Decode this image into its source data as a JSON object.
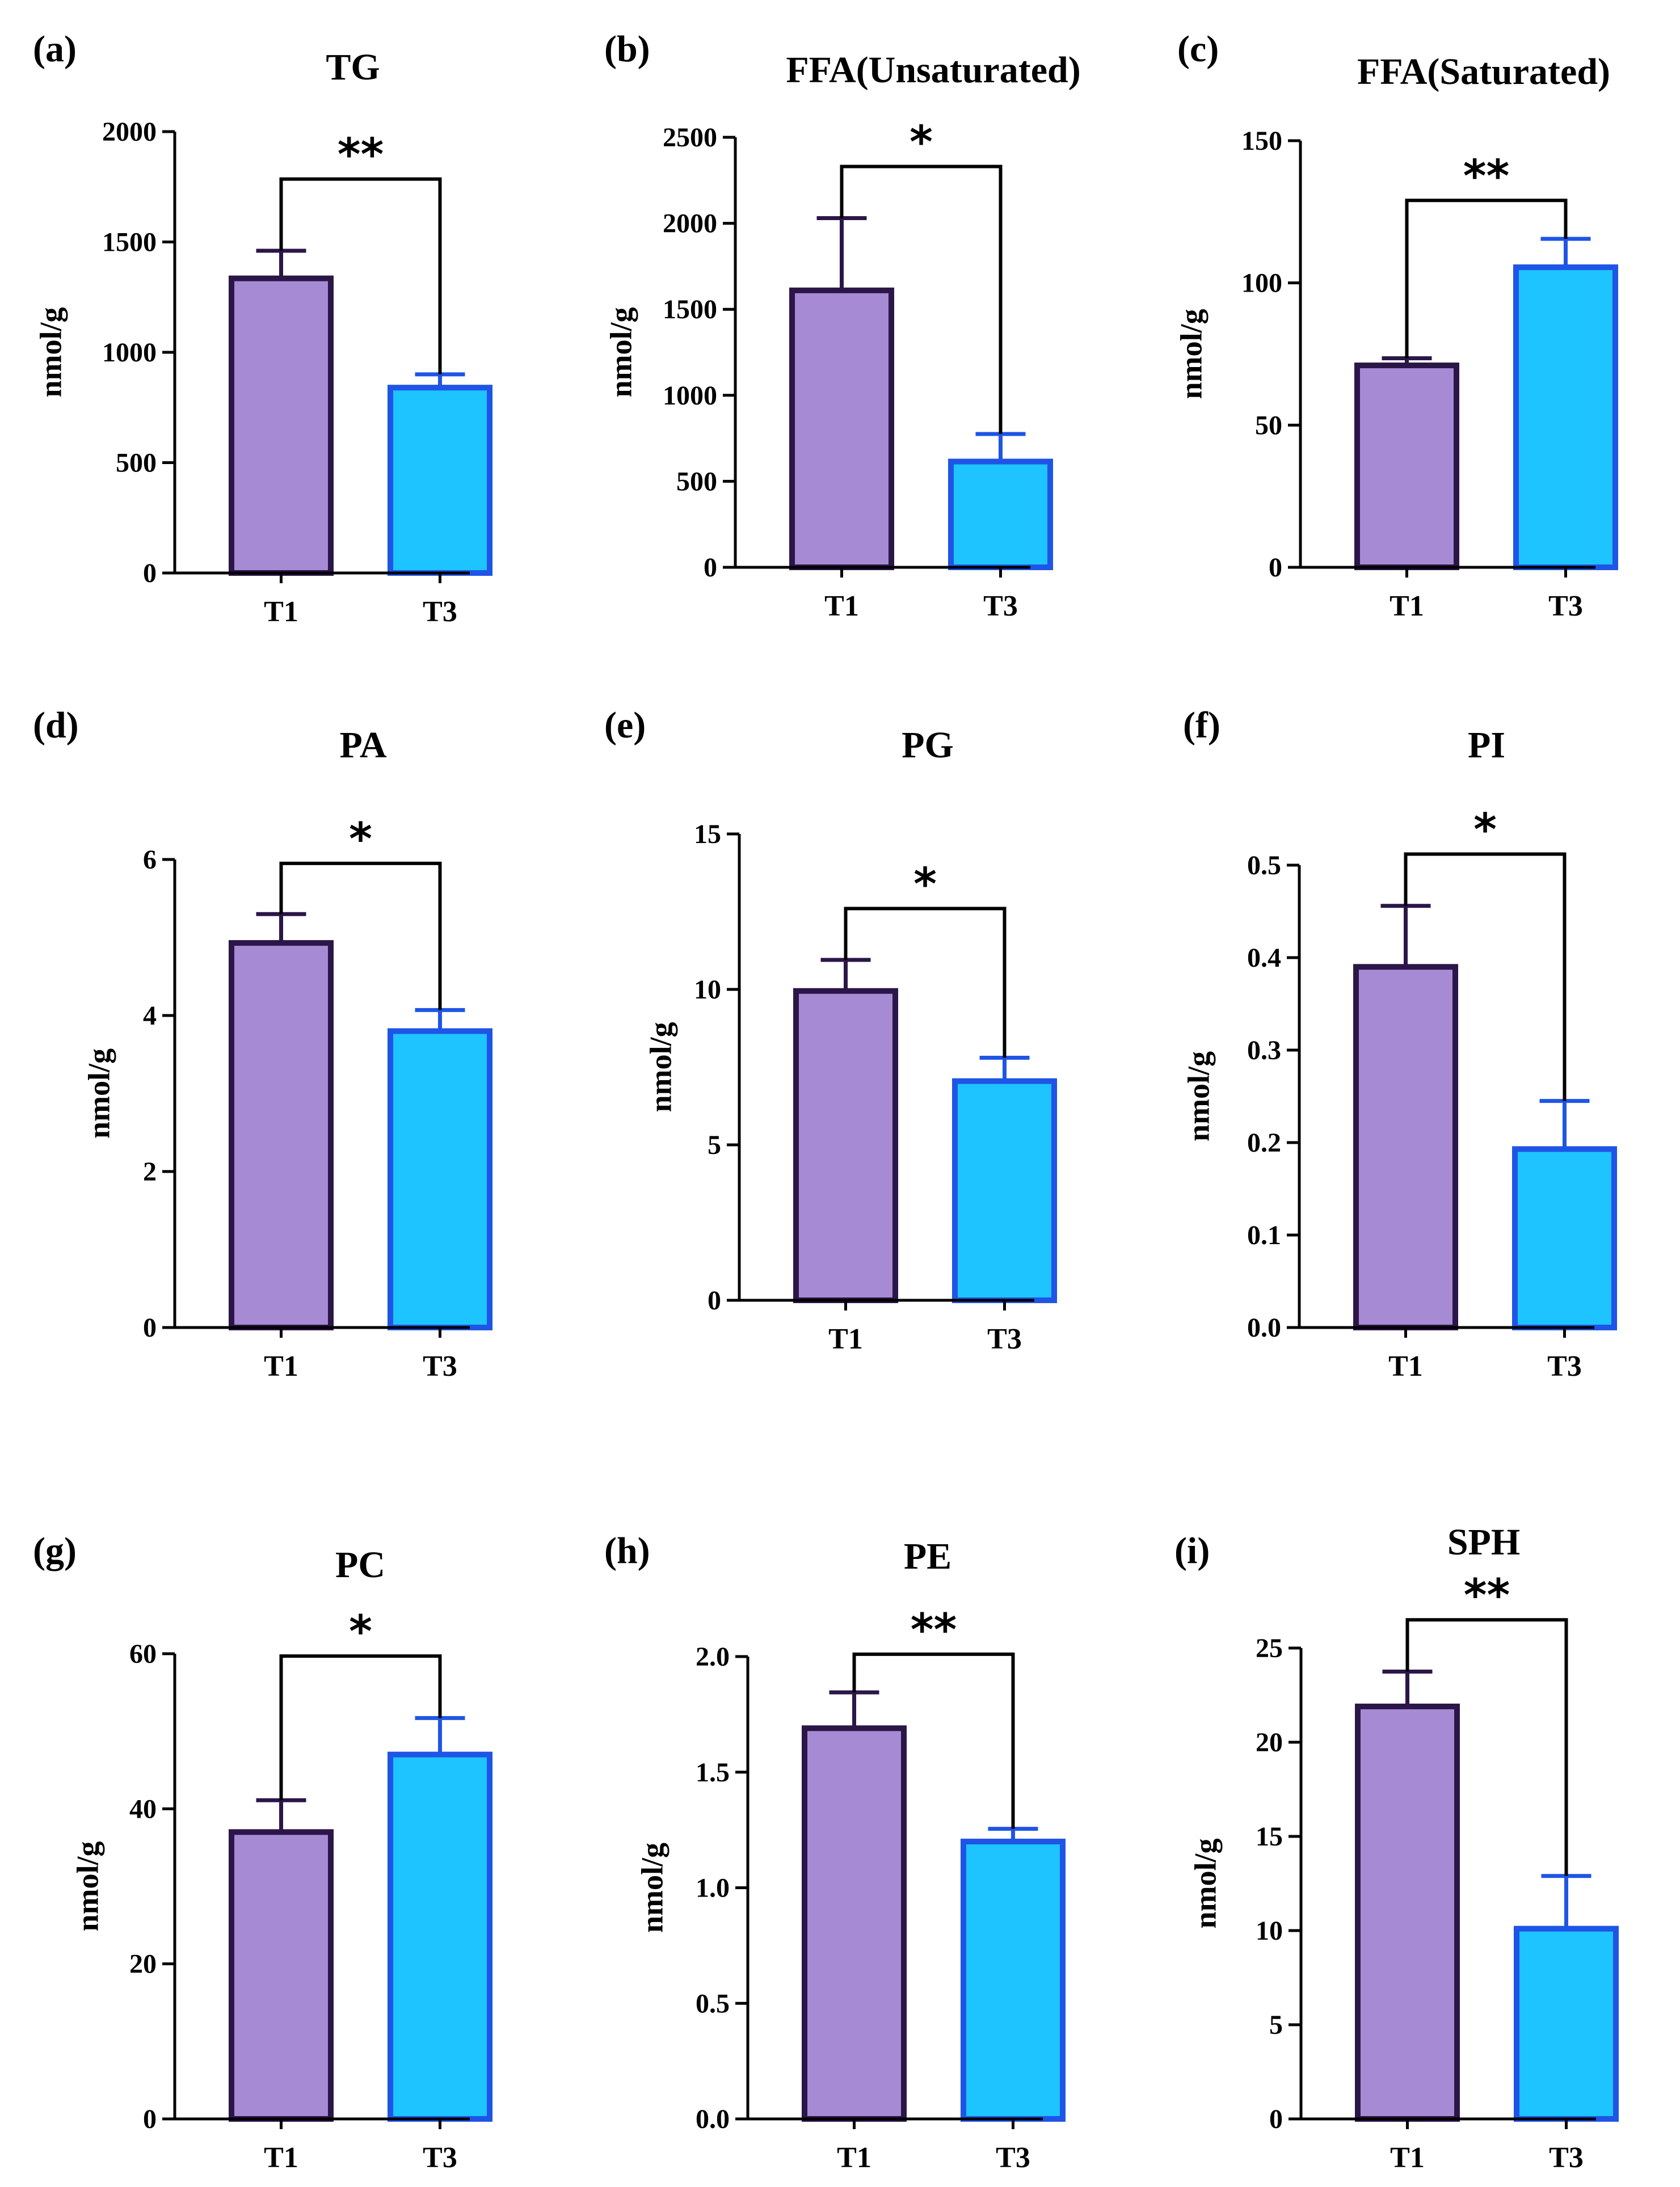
{
  "colors": {
    "t1_fill": "#a68bd4",
    "t1_edge": "#2b1648",
    "t3_fill": "#1ec4ff",
    "t3_edge": "#1f55e6",
    "axis": "#000000"
  },
  "chart_data": [
    {
      "type": "bar",
      "panel": "(a)",
      "title": "TG",
      "ylabel": "nmol/g",
      "xlabel": "",
      "categories": [
        "T1",
        "T3"
      ],
      "values": [
        1335,
        840
      ],
      "errors": [
        125,
        60
      ],
      "ylim": [
        0,
        2000
      ],
      "yticks": [
        0,
        500,
        1000,
        1500,
        2000
      ],
      "yticklabels": [
        "0",
        "500",
        "1000",
        "1500",
        "2000"
      ],
      "significance": "**",
      "bracket_bottoms": [
        1460,
        900
      ],
      "bracket_top": 1785
    },
    {
      "type": "bar",
      "panel": "(b)",
      "title": "FFA(Unsaturated)",
      "ylabel": "nmol/g",
      "xlabel": "",
      "categories": [
        "T1",
        "T3"
      ],
      "values": [
        1610,
        615
      ],
      "errors": [
        420,
        160
      ],
      "ylim": [
        0,
        2500
      ],
      "yticks": [
        0,
        500,
        1000,
        1500,
        2000,
        2500
      ],
      "yticklabels": [
        "0",
        "500",
        "1000",
        "1500",
        "2000",
        "2500"
      ],
      "significance": "*",
      "bracket_bottoms": [
        2030,
        775
      ],
      "bracket_top": 2330
    },
    {
      "type": "bar",
      "panel": "(c)",
      "title": "FFA(Saturated)",
      "ylabel": "nmol/g",
      "xlabel": "",
      "categories": [
        "T1",
        "T3"
      ],
      "values": [
        71,
        105.5
      ],
      "errors": [
        2.5,
        10
      ],
      "ylim": [
        0,
        150
      ],
      "yticks": [
        0,
        50,
        100,
        150
      ],
      "yticklabels": [
        "0",
        "50",
        "100",
        "150"
      ],
      "significance": "**",
      "bracket_bottoms": [
        73.5,
        115.5
      ],
      "bracket_top": 129
    },
    {
      "type": "bar",
      "panel": "(d)",
      "title": "PA",
      "ylabel": "nmol/g",
      "xlabel": "",
      "categories": [
        "T1",
        "T3"
      ],
      "values": [
        4.93,
        3.8
      ],
      "errors": [
        0.37,
        0.27
      ],
      "ylim": [
        0,
        6
      ],
      "yticks": [
        0,
        2,
        4,
        6
      ],
      "yticklabels": [
        "0",
        "2",
        "4",
        "6"
      ],
      "significance": "*",
      "bracket_bottoms": [
        5.3,
        4.07
      ],
      "bracket_top": 5.95
    },
    {
      "type": "bar",
      "panel": "(e)",
      "title": "PG",
      "ylabel": "nmol/g",
      "xlabel": "",
      "categories": [
        "T1",
        "T3"
      ],
      "values": [
        9.95,
        7.05
      ],
      "errors": [
        1.0,
        0.75
      ],
      "ylim": [
        0,
        15
      ],
      "yticks": [
        0,
        5,
        10,
        15
      ],
      "yticklabels": [
        "0",
        "5",
        "10",
        "15"
      ],
      "significance": "*",
      "bracket_bottoms": [
        10.95,
        7.8
      ],
      "bracket_top": 12.6
    },
    {
      "type": "bar",
      "panel": "(f)",
      "title": "PI",
      "ylabel": "nmol/g",
      "xlabel": "",
      "categories": [
        "T1",
        "T3"
      ],
      "values": [
        0.39,
        0.193
      ],
      "errors": [
        0.066,
        0.052
      ],
      "ylim": [
        0,
        0.5
      ],
      "yticks": [
        0.0,
        0.1,
        0.2,
        0.3,
        0.4,
        0.5
      ],
      "yticklabels": [
        "0.0",
        "0.1",
        "0.2",
        "0.3",
        "0.4",
        "0.5"
      ],
      "significance": "*",
      "bracket_bottoms": [
        0.456,
        0.245
      ],
      "bracket_top": 0.512
    },
    {
      "type": "bar",
      "panel": "(g)",
      "title": "PC",
      "ylabel": "nmol/g",
      "xlabel": "",
      "categories": [
        "T1",
        "T3"
      ],
      "values": [
        37,
        47
      ],
      "errors": [
        4.1,
        4.7
      ],
      "ylim": [
        0,
        60
      ],
      "yticks": [
        0,
        20,
        40,
        60
      ],
      "yticklabels": [
        "0",
        "20",
        "40",
        "60"
      ],
      "significance": "*",
      "bracket_bottoms": [
        41.1,
        51.7
      ],
      "bracket_top": 59.7
    },
    {
      "type": "bar",
      "panel": "(h)",
      "title": "PE",
      "ylabel": "nmol/g",
      "xlabel": "",
      "categories": [
        "T1",
        "T3"
      ],
      "values": [
        1.69,
        1.2
      ],
      "errors": [
        0.155,
        0.055
      ],
      "ylim": [
        0,
        2.0
      ],
      "yticks": [
        0.0,
        0.5,
        1.0,
        1.5,
        2.0
      ],
      "yticklabels": [
        "0.0",
        "0.5",
        "1.0",
        "1.5",
        "2.0"
      ],
      "significance": "**",
      "bracket_bottoms": [
        1.845,
        1.255
      ],
      "bracket_top": 2.01
    },
    {
      "type": "bar",
      "panel": "(i)",
      "title": "SPH",
      "ylabel": "nmol/g",
      "xlabel": "",
      "categories": [
        "T1",
        "T3"
      ],
      "values": [
        21.9,
        10.1
      ],
      "errors": [
        1.85,
        2.8
      ],
      "ylim": [
        0,
        25
      ],
      "yticks": [
        0,
        5,
        10,
        15,
        20,
        25
      ],
      "yticklabels": [
        "0",
        "5",
        "10",
        "15",
        "20",
        "25"
      ],
      "significance": "**",
      "bracket_bottoms": [
        23.75,
        12.9
      ],
      "bracket_top": 26.5
    }
  ]
}
